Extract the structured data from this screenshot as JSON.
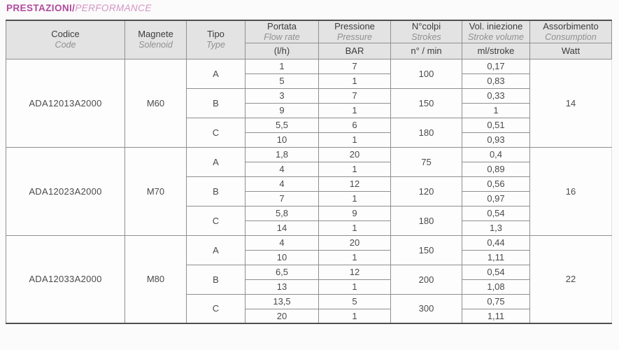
{
  "title": {
    "main": "PRESTAZIONI/",
    "sub": "PERFORMANCE"
  },
  "colors": {
    "title_main": "#b04a9c",
    "title_sub": "#d494c5",
    "header_bg": "#e3e3e3",
    "grid_line": "#8f8f8f",
    "outer_line": "#4f4f4f",
    "body_text": "#4a4a4a"
  },
  "table": {
    "headers": [
      {
        "it": "Codice",
        "en": "Code",
        "unit": null
      },
      {
        "it": "Magnete",
        "en": "Solenoid",
        "unit": null
      },
      {
        "it": "Tipo",
        "en": "Type",
        "unit": null
      },
      {
        "it": "Portata",
        "en": "Flow rate",
        "unit": "(l/h)"
      },
      {
        "it": "Pressione",
        "en": "Pressure",
        "unit": "BAR"
      },
      {
        "it": "N°colpi",
        "en": "Strokes",
        "unit": "n° / min"
      },
      {
        "it": "Vol. iniezione",
        "en": "Stroke volume",
        "unit": "ml/stroke"
      },
      {
        "it": "Assorbimento",
        "en": "Consumption",
        "unit": "Watt"
      }
    ],
    "groups": [
      {
        "code": "ADA12013A2000",
        "magnet": "M60",
        "watt": "14",
        "types": [
          {
            "type": "A",
            "strokes": "100",
            "rows": [
              {
                "flow": "1",
                "pressure": "7",
                "volume": "0,17"
              },
              {
                "flow": "5",
                "pressure": "1",
                "volume": "0,83"
              }
            ]
          },
          {
            "type": "B",
            "strokes": "150",
            "rows": [
              {
                "flow": "3",
                "pressure": "7",
                "volume": "0,33"
              },
              {
                "flow": "9",
                "pressure": "1",
                "volume": "1"
              }
            ]
          },
          {
            "type": "C",
            "strokes": "180",
            "rows": [
              {
                "flow": "5,5",
                "pressure": "6",
                "volume": "0,51"
              },
              {
                "flow": "10",
                "pressure": "1",
                "volume": "0,93"
              }
            ]
          }
        ]
      },
      {
        "code": "ADA12023A2000",
        "magnet": "M70",
        "watt": "16",
        "types": [
          {
            "type": "A",
            "strokes": "75",
            "rows": [
              {
                "flow": "1,8",
                "pressure": "20",
                "volume": "0,4"
              },
              {
                "flow": "4",
                "pressure": "1",
                "volume": "0,89"
              }
            ]
          },
          {
            "type": "B",
            "strokes": "120",
            "rows": [
              {
                "flow": "4",
                "pressure": "12",
                "volume": "0,56"
              },
              {
                "flow": "7",
                "pressure": "1",
                "volume": "0,97"
              }
            ]
          },
          {
            "type": "C",
            "strokes": "180",
            "rows": [
              {
                "flow": "5,8",
                "pressure": "9",
                "volume": "0,54"
              },
              {
                "flow": "14",
                "pressure": "1",
                "volume": "1,3"
              }
            ]
          }
        ]
      },
      {
        "code": "ADA12033A2000",
        "magnet": "M80",
        "watt": "22",
        "types": [
          {
            "type": "A",
            "strokes": "150",
            "rows": [
              {
                "flow": "4",
                "pressure": "20",
                "volume": "0,44"
              },
              {
                "flow": "10",
                "pressure": "1",
                "volume": "1,11"
              }
            ]
          },
          {
            "type": "B",
            "strokes": "200",
            "rows": [
              {
                "flow": "6,5",
                "pressure": "12",
                "volume": "0,54"
              },
              {
                "flow": "13",
                "pressure": "1",
                "volume": "1,08"
              }
            ]
          },
          {
            "type": "C",
            "strokes": "300",
            "rows": [
              {
                "flow": "13,5",
                "pressure": "5",
                "volume": "0,75"
              },
              {
                "flow": "20",
                "pressure": "1",
                "volume": "1,11"
              }
            ]
          }
        ]
      }
    ]
  }
}
